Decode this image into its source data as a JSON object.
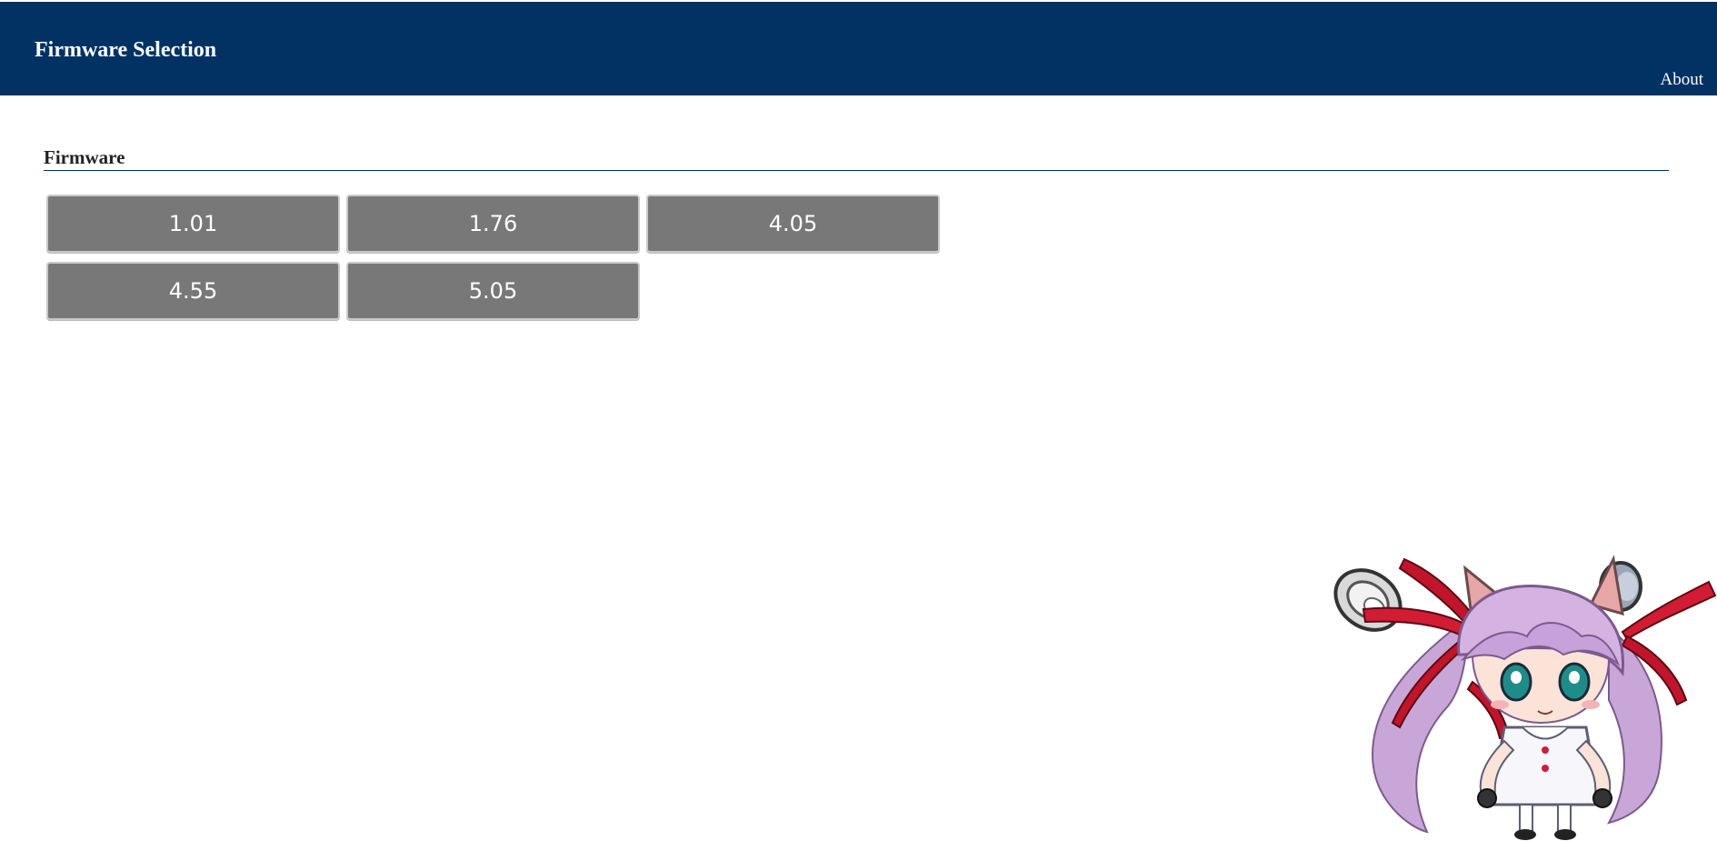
{
  "header": {
    "title": "Firmware Selection",
    "about_label": "About",
    "background_color": "#013263"
  },
  "main": {
    "section_heading": "Firmware",
    "firmware_options": [
      {
        "label": "1.01"
      },
      {
        "label": "1.76"
      },
      {
        "label": "4.05"
      },
      {
        "label": "4.55"
      },
      {
        "label": "5.05"
      }
    ]
  },
  "decor": {
    "mascot": "anime-character-illustration"
  },
  "colors": {
    "button_bg": "#787878",
    "button_text": "#ffffff",
    "rule": "#013263"
  }
}
